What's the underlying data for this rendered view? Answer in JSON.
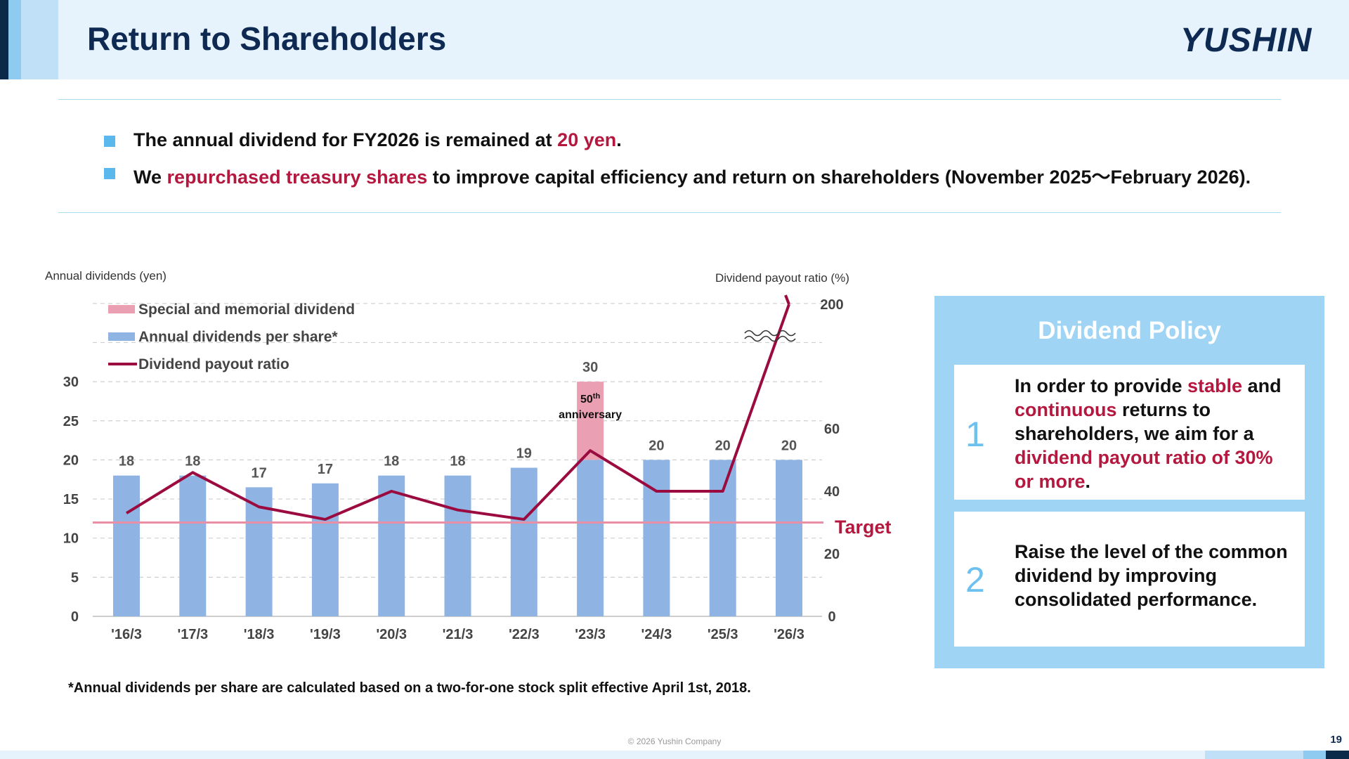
{
  "header": {
    "title": "Return to Shareholders",
    "logo_text": "YUSHIN"
  },
  "bullets": [
    {
      "pre": "The annual dividend for FY2026 is remained at ",
      "highlight": "20 yen",
      "post": "."
    },
    {
      "pre": "We ",
      "highlight": "repurchased treasury shares",
      "post": " to improve capital efficiency and return on shareholders (November 2025〜February 2026)."
    }
  ],
  "chart_data": {
    "type": "bar",
    "left_axis_title": "Annual dividends (yen)",
    "right_axis_title": "Dividend payout ratio (%)",
    "categories": [
      "'16/3",
      "'17/3",
      "'18/3",
      "'19/3",
      "'20/3",
      "'21/3",
      "'22/3",
      "'23/3",
      "'24/3",
      "'25/3",
      "'26/3"
    ],
    "series": [
      {
        "name": "Annual dividends per share*",
        "kind": "bar",
        "color": "#8fb4e3",
        "values": [
          18,
          18,
          16.5,
          17,
          18,
          18,
          19,
          20,
          20,
          20,
          20
        ]
      },
      {
        "name": "Special and memorial dividend",
        "kind": "bar-stack",
        "color": "#eaa0b2",
        "values": [
          0,
          0,
          0,
          0,
          0,
          0,
          0,
          10,
          0,
          0,
          0
        ]
      },
      {
        "name": "Dividend payout ratio",
        "kind": "line",
        "axis": "right",
        "color": "#9b0b3f",
        "values": [
          33,
          46,
          35,
          31,
          40,
          34,
          31,
          53,
          40,
          40,
          200
        ]
      }
    ],
    "bar_labels": [
      "18",
      "18",
      "17",
      "17",
      "18",
      "18",
      "19",
      "30",
      "20",
      "20",
      "20"
    ],
    "annotation": {
      "category": "'23/3",
      "line1": "50",
      "sup": "th",
      "line2": "anniversary"
    },
    "left_ticks": [
      "0",
      "5",
      "10",
      "15",
      "20",
      "25",
      "30"
    ],
    "right_ticks": [
      "0",
      "20",
      "40",
      "60",
      "200"
    ],
    "ylim_left": [
      0,
      30
    ],
    "right_axis_note": "broken axis between 60 and 200",
    "target": {
      "label": "Target",
      "value": 30,
      "axis": "right",
      "color": "#e88fa6"
    },
    "legend_position": "top-left",
    "grid": true
  },
  "footnote": "*Annual dividends per share are calculated based on a two-for-one stock split effective April 1st, 2018.",
  "copyright": "© 2026 Yushin Company",
  "page_number": "19",
  "policy": {
    "title": "Dividend Policy",
    "items": [
      {
        "num": "1",
        "parts": [
          {
            "t": "In order to provide ",
            "hl": false
          },
          {
            "t": "stable",
            "hl": true
          },
          {
            "t": " and ",
            "hl": false
          },
          {
            "t": "continuous",
            "hl": true
          },
          {
            "t": " returns to shareholders, we aim for a ",
            "hl": false
          },
          {
            "t": "dividend payout ratio of 30% or more",
            "hl": true
          },
          {
            "t": ".",
            "hl": false
          }
        ]
      },
      {
        "num": "2",
        "parts": [
          {
            "t": "Raise the level of the common dividend by improving consolidated performance.",
            "hl": false
          }
        ]
      }
    ]
  }
}
